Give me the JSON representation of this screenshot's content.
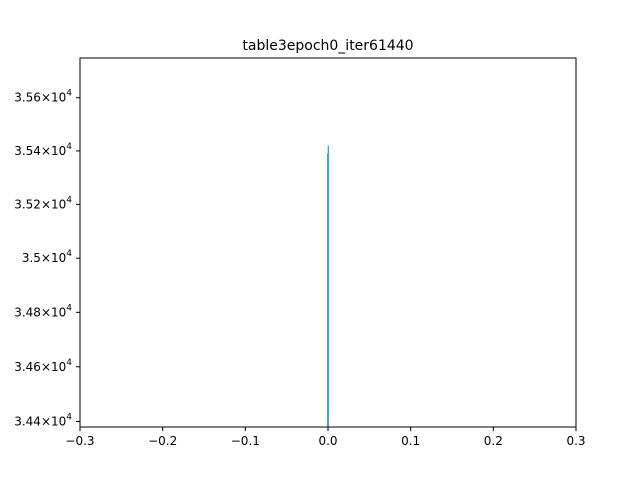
{
  "chart_data": {
    "type": "histogram",
    "title": "table3epoch0_iter61440",
    "xlabel": "",
    "ylabel": "",
    "xlim": [
      -0.3,
      0.3
    ],
    "ylim": [
      34380,
      35750
    ],
    "log_y": true,
    "grid": false,
    "legend": "none",
    "x_ticks": [
      -0.3,
      -0.2,
      -0.1,
      0.0,
      0.1,
      0.2,
      0.3
    ],
    "x_tick_labels": [
      "−0.3",
      "−0.2",
      "−0.1",
      "0.0",
      "0.1",
      "0.2",
      "0.3"
    ],
    "y_ticks": [
      {
        "value": 34400,
        "mantissa": "3.44"
      },
      {
        "value": 34600,
        "mantissa": "3.46"
      },
      {
        "value": 34800,
        "mantissa": "3.48"
      },
      {
        "value": 35000,
        "mantissa": "3.5"
      },
      {
        "value": 35200,
        "mantissa": "3.52"
      },
      {
        "value": 35400,
        "mantissa": "3.54"
      },
      {
        "value": 35600,
        "mantissa": "3.56"
      }
    ],
    "y_tick_suffix": "×10",
    "y_tick_exponent": "4",
    "bars": [
      {
        "x": -0.0003,
        "value": 35390
      },
      {
        "x": 0.0003,
        "value": 35420
      }
    ],
    "bar_color": "#1f77b4"
  }
}
